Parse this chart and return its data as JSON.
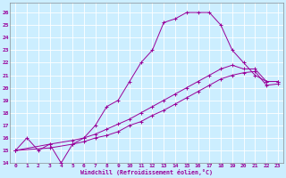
{
  "xlabel": "Windchill (Refroidissement éolien,°C)",
  "bg_color": "#cceeff",
  "line_color": "#990099",
  "grid_color": "#ffffff",
  "xlim": [
    -0.5,
    23.5
  ],
  "ylim": [
    14,
    26.8
  ],
  "xticks": [
    0,
    1,
    2,
    3,
    4,
    5,
    6,
    7,
    8,
    9,
    10,
    11,
    12,
    13,
    14,
    15,
    16,
    17,
    18,
    19,
    20,
    21,
    22,
    23
  ],
  "yticks": [
    14,
    15,
    16,
    17,
    18,
    19,
    20,
    21,
    22,
    23,
    24,
    25,
    26
  ],
  "curve1_x": [
    0,
    1,
    2,
    3,
    4,
    5,
    6,
    7,
    8,
    9,
    10,
    11,
    12,
    13,
    14,
    15,
    16,
    17,
    18,
    19,
    20,
    21,
    22,
    23
  ],
  "curve1_y": [
    15,
    16,
    15,
    15.5,
    14,
    15.5,
    16,
    17,
    18.5,
    19,
    20.5,
    22,
    23,
    25.2,
    25.5,
    26,
    26,
    26,
    25,
    23,
    22,
    21,
    20.5,
    20.5
  ],
  "curve2_x": [
    0,
    3,
    5,
    6,
    7,
    8,
    9,
    10,
    11,
    12,
    13,
    14,
    15,
    16,
    17,
    18,
    19,
    20,
    21,
    22,
    23
  ],
  "curve2_y": [
    15,
    15.5,
    15.8,
    16,
    16.3,
    16.7,
    17.1,
    17.5,
    18,
    18.5,
    19,
    19.5,
    20,
    20.5,
    21,
    21.5,
    21.8,
    21.5,
    21.5,
    20.5,
    20.5
  ],
  "curve3_x": [
    0,
    3,
    5,
    6,
    7,
    8,
    9,
    10,
    11,
    12,
    13,
    14,
    15,
    16,
    17,
    18,
    19,
    20,
    21,
    22,
    23
  ],
  "curve3_y": [
    15,
    15.2,
    15.5,
    15.7,
    16,
    16.2,
    16.5,
    17,
    17.3,
    17.8,
    18.2,
    18.7,
    19.2,
    19.7,
    20.2,
    20.7,
    21,
    21.2,
    21.3,
    20.2,
    20.3
  ]
}
